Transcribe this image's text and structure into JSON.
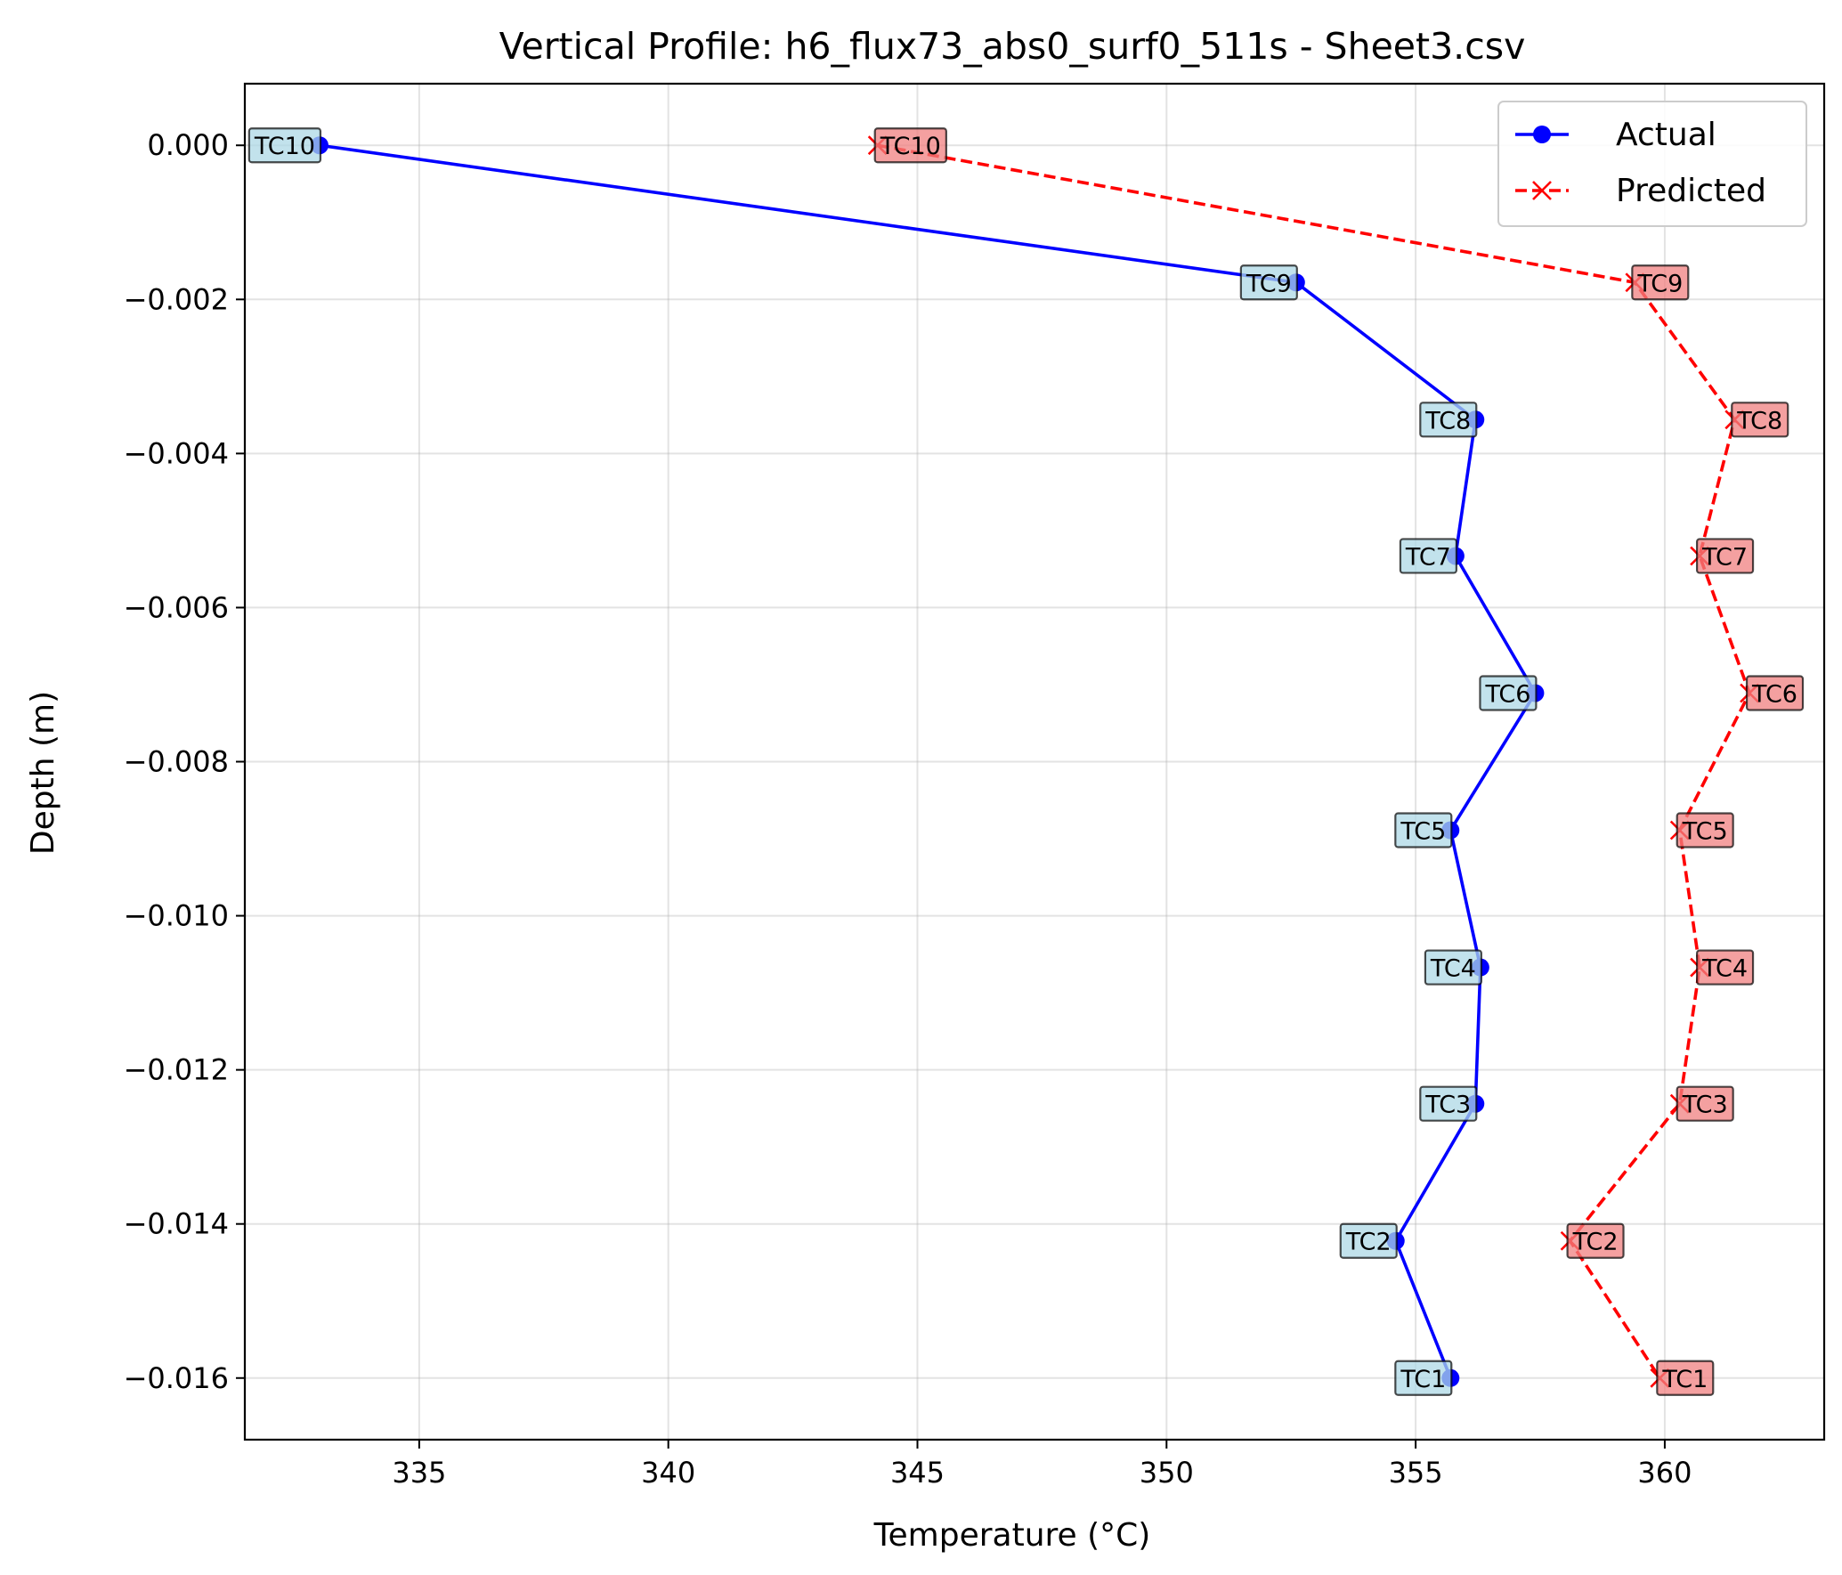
{
  "chart_data": {
    "type": "line",
    "title": "Vertical Profile: h6_flux73_abs0_surf0_511s - Sheet3.csv",
    "xlabel": "Temperature (°C)",
    "ylabel": "Depth (m)",
    "xlim": [
      331.5,
      363.2
    ],
    "ylim": [
      -0.0168,
      0.0008
    ],
    "xticks": [
      335,
      340,
      345,
      350,
      355,
      360
    ],
    "xtick_labels": [
      "335",
      "340",
      "345",
      "350",
      "355",
      "360"
    ],
    "yticks": [
      0.0,
      -0.002,
      -0.004,
      -0.006,
      -0.008,
      -0.01,
      -0.012,
      -0.014,
      -0.016
    ],
    "ytick_labels": [
      "0.000",
      "−0.002",
      "−0.004",
      "−0.006",
      "−0.008",
      "−0.010",
      "−0.012",
      "−0.014",
      "−0.016"
    ],
    "grid": true,
    "legend_position": "upper right",
    "series": [
      {
        "name": "Actual",
        "color": "#0000ff",
        "linestyle": "solid",
        "marker": "circle",
        "label_bg": "#add8e6",
        "labels": [
          "TC10",
          "TC9",
          "TC8",
          "TC7",
          "TC6",
          "TC5",
          "TC4",
          "TC3",
          "TC2",
          "TC1"
        ],
        "x": [
          333.0,
          352.6,
          356.2,
          355.8,
          357.4,
          355.7,
          356.3,
          356.2,
          354.6,
          355.7
        ],
        "y": [
          0.0,
          -0.00178,
          -0.00356,
          -0.00533,
          -0.00711,
          -0.00889,
          -0.01067,
          -0.01244,
          -0.01422,
          -0.016
        ]
      },
      {
        "name": "Predicted",
        "color": "#ff0000",
        "linestyle": "dashed",
        "marker": "x",
        "label_bg": "#f08080",
        "labels": [
          "TC10",
          "TC9",
          "TC8",
          "TC7",
          "TC6",
          "TC5",
          "TC4",
          "TC3",
          "TC2",
          "TC1"
        ],
        "x": [
          344.2,
          359.4,
          361.4,
          360.7,
          361.7,
          360.3,
          360.7,
          360.3,
          358.1,
          359.9
        ],
        "y": [
          0.0,
          -0.00178,
          -0.00356,
          -0.00533,
          -0.00711,
          -0.00889,
          -0.01067,
          -0.01244,
          -0.01422,
          -0.016
        ]
      }
    ]
  }
}
